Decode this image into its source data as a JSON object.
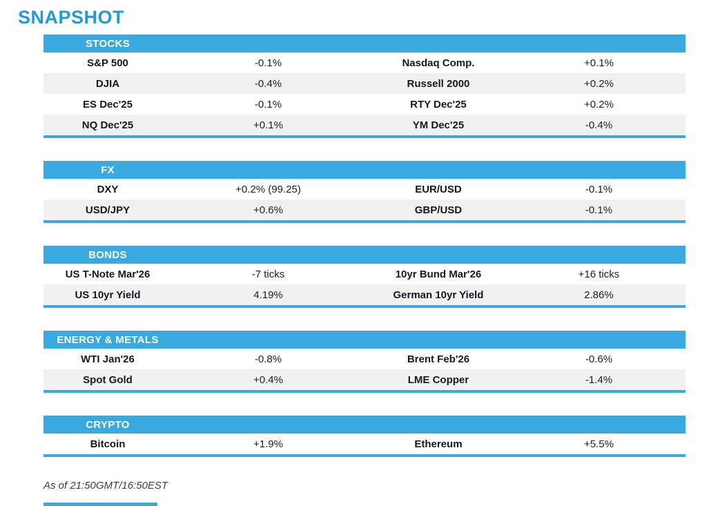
{
  "page": {
    "title": "SNAPSHOT",
    "footer": "As of 21:50GMT/16:50EST",
    "accent_blue": "#3aa9e0",
    "title_blue": "#1c9dd9",
    "alt_row_gray": "#f1f1f2"
  },
  "sections": [
    {
      "header": "STOCKS",
      "rows": [
        {
          "l1": "S&P 500",
          "v1": "-0.1%",
          "l2": "Nasdaq Comp.",
          "v2": "+0.1%"
        },
        {
          "l1": "DJIA",
          "v1": "-0.4%",
          "l2": "Russell 2000",
          "v2": "+0.2%"
        },
        {
          "l1": "ES Dec'25",
          "v1": "-0.1%",
          "l2": "RTY Dec'25",
          "v2": "+0.2%"
        },
        {
          "l1": "NQ Dec'25",
          "v1": "+0.1%",
          "l2": "YM Dec'25",
          "v2": "-0.4%"
        }
      ]
    },
    {
      "header": "FX",
      "rows": [
        {
          "l1": "DXY",
          "v1": "+0.2% (99.25)",
          "l2": "EUR/USD",
          "v2": "-0.1%"
        },
        {
          "l1": "USD/JPY",
          "v1": "+0.6%",
          "l2": "GBP/USD",
          "v2": "-0.1%"
        }
      ]
    },
    {
      "header": "BONDS",
      "rows": [
        {
          "l1": "US T-Note Mar'26",
          "v1": "-7 ticks",
          "l2": "10yr Bund Mar'26",
          "v2": "+16 ticks"
        },
        {
          "l1": "US 10yr Yield",
          "v1": "4.19%",
          "l2": "German 10yr Yield",
          "v2": "2.86%"
        }
      ]
    },
    {
      "header": "ENERGY & METALS",
      "rows": [
        {
          "l1": "WTI Jan'26",
          "v1": "-0.8%",
          "l2": "Brent Feb'26",
          "v2": "-0.6%"
        },
        {
          "l1": "Spot Gold",
          "v1": "+0.4%",
          "l2": "LME Copper",
          "v2": "-1.4%"
        }
      ]
    },
    {
      "header": "CRYPTO",
      "rows": [
        {
          "l1": "Bitcoin",
          "v1": "+1.9%",
          "l2": "Ethereum",
          "v2": "+5.5%"
        }
      ]
    }
  ]
}
